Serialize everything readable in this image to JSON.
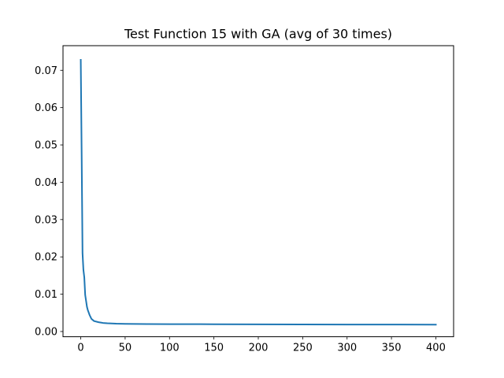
{
  "chart_data": {
    "type": "line",
    "title": "Test Function 15 with GA (avg of 30 times)",
    "xlabel": "",
    "ylabel": "",
    "xlim": [
      -20,
      420
    ],
    "ylim": [
      -0.0014,
      0.0766
    ],
    "xticks": [
      0,
      50,
      100,
      150,
      200,
      250,
      300,
      350,
      400
    ],
    "xtick_labels": [
      "0",
      "50",
      "100",
      "150",
      "200",
      "250",
      "300",
      "350",
      "400"
    ],
    "yticks": [
      0.0,
      0.01,
      0.02,
      0.03,
      0.04,
      0.05,
      0.06,
      0.07
    ],
    "ytick_labels": [
      "0.00",
      "0.01",
      "0.02",
      "0.03",
      "0.04",
      "0.05",
      "0.06",
      "0.07"
    ],
    "grid": false,
    "colors": {
      "line": "#1f77b4"
    },
    "series": [
      {
        "x": [
          0,
          1,
          2,
          3,
          4,
          5,
          6,
          7,
          8,
          10,
          12,
          15,
          20,
          25,
          30,
          40,
          50,
          75,
          100,
          150,
          200,
          250,
          300,
          350,
          400
        ],
        "values": [
          0.0728,
          0.048,
          0.021,
          0.0165,
          0.0145,
          0.0098,
          0.0082,
          0.0066,
          0.0057,
          0.0044,
          0.0034,
          0.0028,
          0.0025,
          0.0023,
          0.0022,
          0.0021,
          0.00205,
          0.002,
          0.00198,
          0.00195,
          0.00192,
          0.00189,
          0.00187,
          0.00186,
          0.00185
        ]
      }
    ]
  }
}
